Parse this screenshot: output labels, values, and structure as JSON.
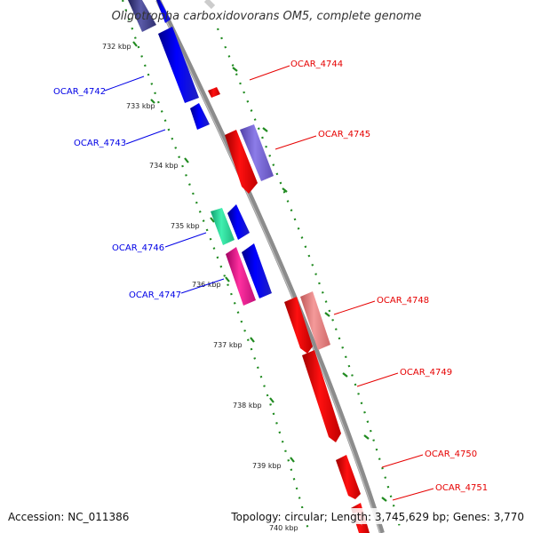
{
  "header": {
    "title": "Oligotropha carboxidovorans OM5, complete genome"
  },
  "footer": {
    "accession": "Accession: NC_011386",
    "summary": "Topology: circular; Length: 3,745,629 bp; Genes: 3,770"
  },
  "scale_labels": [
    "732 kbp",
    "733 kbp",
    "734 kbp",
    "735 kbp",
    "736 kbp",
    "737 kbp",
    "738 kbp",
    "739 kbp",
    "740 kbp"
  ],
  "genes_minus": [
    {
      "label": "OCAR_4742",
      "color": "#0000e6"
    },
    {
      "label": "OCAR_4743",
      "color": "#0000e6"
    },
    {
      "label": "OCAR_4746",
      "color": "#0000e6"
    },
    {
      "label": "OCAR_4747",
      "color": "#0000e6"
    }
  ],
  "genes_plus": [
    {
      "label": "OCAR_4744",
      "color": "#e60000"
    },
    {
      "label": "OCAR_4745",
      "color": "#e60000"
    },
    {
      "label": "OCAR_4748",
      "color": "#e60000"
    },
    {
      "label": "OCAR_4749",
      "color": "#e60000"
    },
    {
      "label": "OCAR_4750",
      "color": "#e60000"
    },
    {
      "label": "OCAR_4751",
      "color": "#e60000"
    }
  ],
  "colors": {
    "backbone": "#8c8c8c",
    "dots": "#1f8a1f",
    "minus_strand": "#0000e6",
    "plus_strand": "#e60000",
    "cds_plus_alt": "#7b68d8",
    "cds_plus_light": "#f08080",
    "cds_minus_green": "#2ee6a0",
    "cds_minus_pink": "#e6198c",
    "cds_minus_dark": "#4a4a90"
  }
}
